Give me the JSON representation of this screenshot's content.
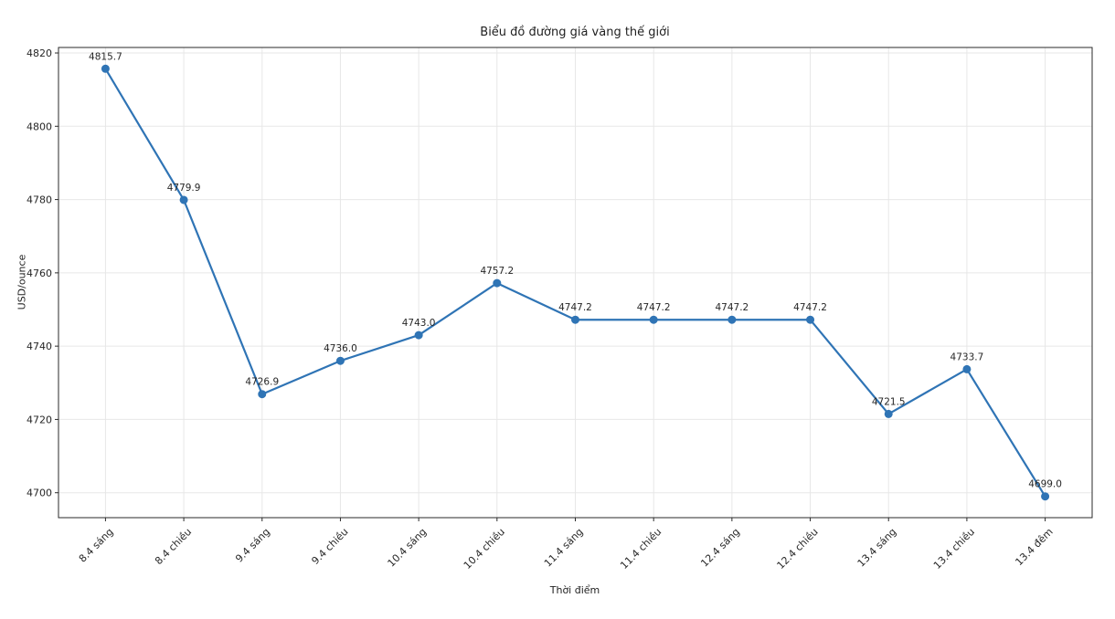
{
  "chart_data": {
    "type": "line",
    "title": "Biểu đồ đường giá vàng thế giới",
    "xlabel": "Thời điểm",
    "ylabel": "USD/ounce",
    "categories": [
      "8.4 sáng",
      "8.4 chiều",
      "9.4 sáng",
      "9.4 chiều",
      "10.4 sáng",
      "10.4 chiều",
      "11.4 sáng",
      "11.4 chiều",
      "12.4 sáng",
      "12.4 chiều",
      "13.4 sáng",
      "13.4 chiều",
      "13.4 đêm"
    ],
    "values": [
      4815.7,
      4779.9,
      4726.9,
      4736.0,
      4743.0,
      4757.2,
      4747.2,
      4747.2,
      4747.2,
      4747.2,
      4721.5,
      4733.7,
      4699.0
    ],
    "point_labels": [
      "4815.7",
      "4779.9",
      "4726.9",
      "4736.0",
      "4743.0",
      "4757.2",
      "4747.2",
      "4747.2",
      "4747.2",
      "4747.2",
      "4721.5",
      "4733.7",
      "4699.0"
    ],
    "yticks": [
      4700,
      4720,
      4740,
      4760,
      4780,
      4800,
      4820
    ],
    "ylim": [
      4693.2,
      4821.5
    ],
    "grid": true,
    "legend": "none",
    "marker": "circle",
    "line_color": "#2f74b5",
    "grid_color": "#e7e7e7",
    "axis_color": "#2a2a2a",
    "text_color": "#262626"
  }
}
